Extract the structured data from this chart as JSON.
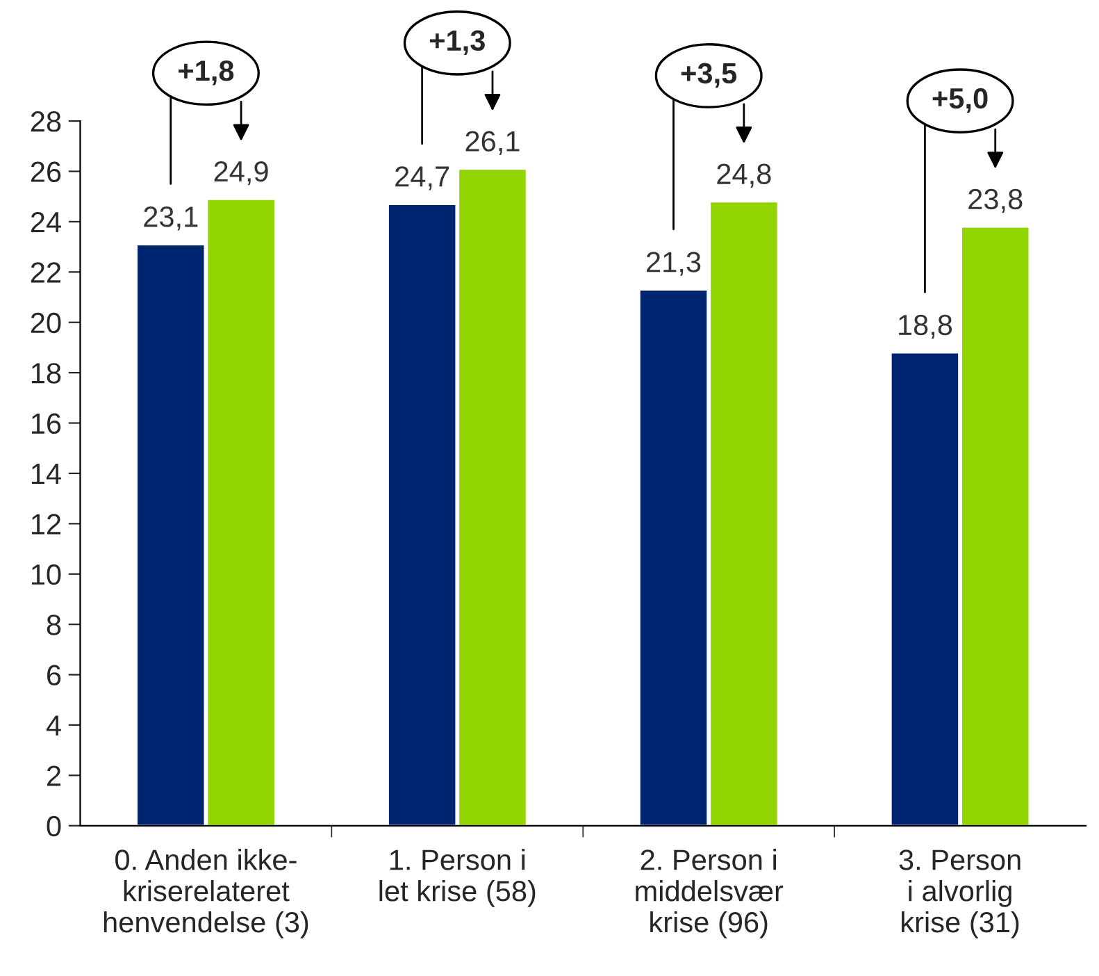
{
  "chart_data": {
    "type": "bar",
    "categories": [
      "0. Anden ikke-\nkriserelateret\nhenvendelse (3)",
      "1. Person i\nlet krise (58)",
      "2. Person i\nmiddelsvær\nkrise (96)",
      "3. Person\ni alvorlig\nkrise (31)"
    ],
    "series": [
      {
        "color": "#002570",
        "values": [
          23.1,
          24.7,
          21.3,
          18.8
        ],
        "value_labels": [
          "23,1",
          "24,7",
          "21,3",
          "18,8"
        ]
      },
      {
        "color": "#92d400",
        "values": [
          24.9,
          26.1,
          24.8,
          23.8
        ],
        "value_labels": [
          "24,9",
          "26,1",
          "24,8",
          "23,8"
        ]
      }
    ],
    "ylim": [
      0,
      28
    ],
    "yticks": [
      0,
      2,
      4,
      6,
      8,
      10,
      12,
      14,
      16,
      18,
      20,
      22,
      24,
      26,
      28
    ],
    "grid": false,
    "legend": false,
    "annotations": [
      "+1,8",
      "+1,3",
      "+3,5",
      "+5,0"
    ]
  }
}
